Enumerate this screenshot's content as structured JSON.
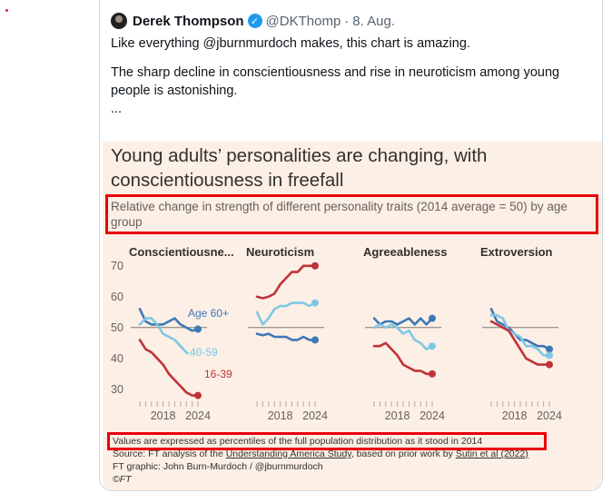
{
  "tweet": {
    "author_name": "Derek Thompson",
    "verified_icon": "verified-badge-icon",
    "handle": "@DKThomp",
    "separator": "·",
    "date": "8. Aug.",
    "text_line1": "Like everything @jburnmurdoch makes, this chart is amazing.",
    "text_body": "The sharp decline in conscientiousness and rise in neuroticism among young people is astonishing.",
    "ellipsis": "..."
  },
  "chart": {
    "title": "Young adults’ personalities are changing, with conscientiousness in freefall",
    "subtitle": "Relative change in strength of different personality traits (2014 average = 50) by age group",
    "footnote": "Values are expressed as percentiles of the full population distribution as it stood in 2014",
    "source_prefix": "Source: FT analysis of the ",
    "source_link1": "Understanding America Study",
    "source_mid": ", based on prior work by ",
    "source_link2": "Sutin et al (2022)",
    "credit": "FT graphic: John Burn-Murdoch / @jburnmurdoch",
    "copyright": "©FT"
  },
  "colors": {
    "age_60_plus": "#3e77b6",
    "age_40_59": "#7ec8e3",
    "age_16_39": "#c0323a",
    "reference_line": "#7d7874",
    "highlight_box": "#e8000b",
    "panel_bg": "#fcefe5"
  },
  "chart_data": {
    "type": "line",
    "y_ticks": [
      70,
      60,
      50,
      40,
      30
    ],
    "ylim": [
      27,
      72
    ],
    "x_ticks": [
      "2018",
      "2024"
    ],
    "xlim": [
      2014,
      2024
    ],
    "reference_line": 50,
    "panels": [
      {
        "title": "Conscientiousne...",
        "series": [
          {
            "name": "Age 60+",
            "x": [
              2014,
              2015,
              2016,
              2017,
              2018,
              2019,
              2020,
              2021,
              2022,
              2023,
              2024
            ],
            "values": [
              56,
              52,
              51,
              51,
              51,
              52,
              53,
              51,
              50,
              49,
              49.5
            ]
          },
          {
            "name": "40-59",
            "x": [
              2014,
              2015,
              2016,
              2017,
              2018,
              2019,
              2020,
              2021,
              2022,
              2023,
              2024
            ],
            "values": [
              51,
              53,
              53,
              51,
              48,
              47,
              46,
              44,
              42,
              41,
              42
            ]
          },
          {
            "name": "16-39",
            "x": [
              2014,
              2015,
              2016,
              2017,
              2018,
              2019,
              2020,
              2021,
              2022,
              2023,
              2024
            ],
            "values": [
              46,
              43,
              42,
              40,
              38,
              35,
              33,
              31,
              29,
              28,
              28
            ]
          }
        ]
      },
      {
        "title": "Neuroticism",
        "series": [
          {
            "name": "16-39",
            "x": [
              2014,
              2015,
              2016,
              2017,
              2018,
              2019,
              2020,
              2021,
              2022,
              2023,
              2024
            ],
            "values": [
              60,
              59.5,
              60,
              61,
              64,
              66,
              68,
              68,
              70,
              70,
              70
            ]
          },
          {
            "name": "40-59",
            "x": [
              2014,
              2015,
              2016,
              2017,
              2018,
              2019,
              2020,
              2021,
              2022,
              2023,
              2024
            ],
            "values": [
              55,
              51,
              53,
              56,
              57,
              57,
              58,
              58,
              58,
              57,
              58
            ]
          },
          {
            "name": "Age 60+",
            "x": [
              2014,
              2015,
              2016,
              2017,
              2018,
              2019,
              2020,
              2021,
              2022,
              2023,
              2024
            ],
            "values": [
              48,
              47.5,
              48,
              47,
              47,
              47,
              46,
              46,
              47,
              46,
              46
            ]
          }
        ]
      },
      {
        "title": "Agreeableness",
        "series": [
          {
            "name": "Age 60+",
            "x": [
              2014,
              2015,
              2016,
              2017,
              2018,
              2019,
              2020,
              2021,
              2022,
              2023,
              2024
            ],
            "values": [
              53,
              51,
              52,
              52,
              51,
              52,
              53,
              51,
              53,
              51,
              53
            ]
          },
          {
            "name": "40-59",
            "x": [
              2014,
              2015,
              2016,
              2017,
              2018,
              2019,
              2020,
              2021,
              2022,
              2023,
              2024
            ],
            "values": [
              50,
              51,
              50,
              51,
              50,
              48,
              49,
              46,
              45,
              43,
              44
            ]
          },
          {
            "name": "16-39",
            "x": [
              2014,
              2015,
              2016,
              2017,
              2018,
              2019,
              2020,
              2021,
              2022,
              2023,
              2024
            ],
            "values": [
              44,
              44,
              45,
              43,
              41,
              38,
              37,
              36,
              36,
              35,
              35
            ]
          }
        ]
      },
      {
        "title": "Extroversion",
        "series": [
          {
            "name": "Age 60+",
            "x": [
              2014,
              2015,
              2016,
              2017,
              2018,
              2019,
              2020,
              2021,
              2022,
              2023,
              2024
            ],
            "values": [
              56,
              52,
              51,
              50,
              48,
              46,
              46,
              45,
              44,
              44,
              43
            ]
          },
          {
            "name": "40-59",
            "x": [
              2014,
              2015,
              2016,
              2017,
              2018,
              2019,
              2020,
              2021,
              2022,
              2023,
              2024
            ],
            "values": [
              54,
              54,
              53,
              49,
              48,
              47,
              44,
              44,
              43,
              41,
              41
            ]
          },
          {
            "name": "16-39",
            "x": [
              2014,
              2015,
              2016,
              2017,
              2018,
              2019,
              2020,
              2021,
              2022,
              2023,
              2024
            ],
            "values": [
              52,
              51,
              50,
              49,
              46,
              43,
              40,
              39,
              38,
              38,
              38
            ]
          }
        ]
      }
    ],
    "series_labels": [
      {
        "panel": 0,
        "series": "Age 60+",
        "text": "Age 60+"
      },
      {
        "panel": 0,
        "series": "40-59",
        "text": "40-59"
      },
      {
        "panel": 0,
        "series": "16-39",
        "text": "16-39"
      }
    ]
  }
}
